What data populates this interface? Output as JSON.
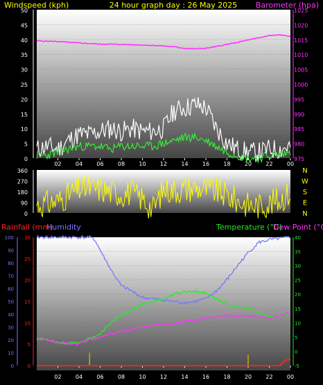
{
  "header": {
    "left": "Windspeed (kph)",
    "center": "24 hour graph day : 26 May 2025",
    "right": "Barometer (hpa)"
  },
  "colors": {
    "background": "#000000",
    "panel_top": "#ffffff",
    "panel_bottom": "#4a4a4a",
    "gust": "#ffffff",
    "wind": "#33ee33",
    "barometer": "#ff33ff",
    "direction": "#ffff00",
    "rain_axis": "#ff2222",
    "humidity": "#7777ff",
    "temperature": "#22ee22",
    "dewpoint": "#ff33ff",
    "rain_ticks": "#ccaa00",
    "text_yellow": "#ffff00"
  },
  "chart_data": [
    {
      "type": "line",
      "name": "wind-barometer",
      "title": "24 hour graph day : 26 May 2025",
      "ylabel": "Windspeed (kph)",
      "y2label": "Barometer (hpa)",
      "xticks": [
        "02",
        "04",
        "06",
        "08",
        "10",
        "12",
        "14",
        "16",
        "18",
        "20",
        "22",
        "00"
      ],
      "x_range": [
        0,
        24
      ],
      "ylim": [
        0,
        50
      ],
      "yticks": [
        "0",
        "5",
        "10",
        "15",
        "20",
        "25",
        "30",
        "35",
        "40",
        "45",
        "50"
      ],
      "y2lim": [
        975,
        1025
      ],
      "y2ticks": [
        "975",
        "980",
        "985",
        "990",
        "995",
        "1000",
        "1005",
        "1010",
        "1015",
        "1020",
        "1025"
      ],
      "series": [
        {
          "name": "Barometer",
          "axis": "right",
          "color": "#ff33ff",
          "x": [
            0,
            1,
            2,
            3,
            4,
            5,
            6,
            7,
            8,
            9,
            10,
            11,
            12,
            13,
            14,
            15,
            16,
            17,
            18,
            19,
            20,
            21,
            22,
            23,
            24
          ],
          "values": [
            1014.5,
            1014.4,
            1014.3,
            1014.0,
            1013.8,
            1013.6,
            1013.4,
            1013.4,
            1013.3,
            1013.2,
            1013.1,
            1013.0,
            1012.8,
            1012.5,
            1012.0,
            1011.8,
            1012.0,
            1012.6,
            1013.3,
            1014.0,
            1014.8,
            1015.5,
            1016.3,
            1016.5,
            1016.0
          ]
        },
        {
          "name": "Gust",
          "axis": "left",
          "color": "#ffffff",
          "x": [
            0,
            1,
            2,
            3,
            4,
            5,
            6,
            7,
            8,
            9,
            10,
            11,
            12,
            13,
            14,
            15,
            16,
            17,
            18,
            19,
            20,
            21,
            22,
            23,
            24
          ],
          "values": [
            3,
            4,
            3,
            6,
            8,
            8,
            9,
            10,
            9,
            10,
            9,
            9,
            10,
            16,
            17,
            18,
            17,
            10,
            5,
            3,
            2,
            2,
            3,
            3,
            4
          ]
        },
        {
          "name": "Windspeed",
          "axis": "left",
          "color": "#33ee33",
          "x": [
            0,
            1,
            2,
            3,
            4,
            5,
            6,
            7,
            8,
            9,
            10,
            11,
            12,
            13,
            14,
            15,
            16,
            17,
            18,
            19,
            20,
            21,
            22,
            23,
            24
          ],
          "values": [
            1,
            1,
            2,
            3,
            4,
            4,
            4,
            3,
            4,
            4,
            4,
            4,
            5,
            6,
            7,
            7,
            6,
            4,
            2,
            1,
            0,
            0,
            1,
            1,
            2
          ]
        }
      ]
    },
    {
      "type": "line",
      "name": "wind-direction",
      "xticks": [],
      "yticks": [
        "0",
        "90",
        "180",
        "270",
        "360"
      ],
      "ylim": [
        0,
        360
      ],
      "compass": [
        "N",
        "W",
        "S",
        "E",
        "N"
      ],
      "series": [
        {
          "name": "Direction",
          "color": "#ffff00",
          "x": [
            0,
            1,
            2,
            3,
            4,
            5,
            6,
            7,
            8,
            9,
            10,
            11,
            12,
            13,
            14,
            15,
            16,
            17,
            18,
            19,
            20,
            21,
            22,
            23,
            24
          ],
          "values": [
            70,
            80,
            100,
            150,
            200,
            210,
            200,
            180,
            160,
            170,
            120,
            30,
            200,
            190,
            200,
            210,
            200,
            180,
            150,
            100,
            70,
            60,
            80,
            110,
            170
          ]
        }
      ]
    },
    {
      "type": "line",
      "name": "temperature-humidity-rain",
      "legend": [
        "Rainfall (mm)",
        "Humidity",
        "Temperature (°C)",
        "Dew Point (°C)"
      ],
      "xticks": [
        "02",
        "04",
        "06",
        "08",
        "10",
        "12",
        "14",
        "16",
        "18",
        "20",
        "22",
        "00"
      ],
      "x_range": [
        0,
        24
      ],
      "humidity_ticks": [
        "0",
        "10",
        "20",
        "30",
        "40",
        "50",
        "60",
        "70",
        "80",
        "90",
        "100"
      ],
      "humidity_lim": [
        0,
        100
      ],
      "rain_ticks": [
        "0",
        "5",
        "10",
        "15",
        "20",
        "25",
        "30"
      ],
      "rain_lim": [
        0,
        30
      ],
      "temp_ticks": [
        "-5",
        "0",
        "5",
        "10",
        "15",
        "20",
        "25",
        "30",
        "35",
        "40"
      ],
      "temp_lim": [
        -5,
        40
      ],
      "series": [
        {
          "name": "Humidity",
          "axis": "humidity",
          "color": "#7777ff",
          "x": [
            0,
            1,
            2,
            3,
            4,
            5,
            5.5,
            6,
            7,
            8,
            9,
            10,
            11,
            12,
            13,
            14,
            15,
            16,
            17,
            18,
            19,
            20,
            21,
            22,
            23,
            24
          ],
          "values": [
            100,
            100,
            100,
            100,
            100,
            100,
            98,
            90,
            75,
            62,
            58,
            53,
            52,
            51,
            50,
            49,
            50,
            52,
            58,
            67,
            78,
            88,
            96,
            98,
            99,
            100
          ]
        },
        {
          "name": "Temperature",
          "axis": "temp",
          "color": "#22ee22",
          "x": [
            0,
            1,
            2,
            3,
            4,
            5,
            6,
            7,
            8,
            9,
            10,
            11,
            12,
            13,
            14,
            15,
            16,
            17,
            18,
            19,
            20,
            21,
            22,
            23,
            24
          ],
          "values": [
            4.5,
            4.2,
            3.2,
            2.8,
            3.0,
            4.5,
            6,
            10,
            12.5,
            14.5,
            16.5,
            17.5,
            18.5,
            20,
            21,
            21,
            20.5,
            18.5,
            16.5,
            15.5,
            15,
            13.5,
            12,
            12.5,
            13.5
          ]
        },
        {
          "name": "Dew Point",
          "axis": "temp",
          "color": "#ff33ff",
          "x": [
            0,
            1,
            2,
            3,
            4,
            5,
            6,
            7,
            8,
            9,
            10,
            11,
            12,
            13,
            14,
            15,
            16,
            17,
            18,
            19,
            20,
            21,
            22,
            23,
            24
          ],
          "values": [
            4.5,
            4.0,
            3.2,
            2.6,
            2.8,
            4.0,
            5,
            6,
            7,
            7.5,
            8.5,
            9,
            9.5,
            10,
            10.5,
            11,
            11.5,
            12,
            12.5,
            12.5,
            12.5,
            12,
            12,
            12.5,
            13.5
          ]
        },
        {
          "name": "Rainfall",
          "axis": "rain",
          "color": "#ff2222",
          "x": [
            0,
            4,
            8,
            12,
            16,
            20,
            22,
            23,
            23.5,
            24
          ],
          "values": [
            0,
            0,
            0,
            0,
            0,
            0,
            0,
            0,
            1.2,
            1.5
          ]
        },
        {
          "name": "Rain rate",
          "axis": "rain",
          "type": "bars",
          "color": "#ccaa00",
          "x": [
            5,
            20
          ],
          "values": [
            3,
            2.5
          ]
        }
      ]
    }
  ]
}
